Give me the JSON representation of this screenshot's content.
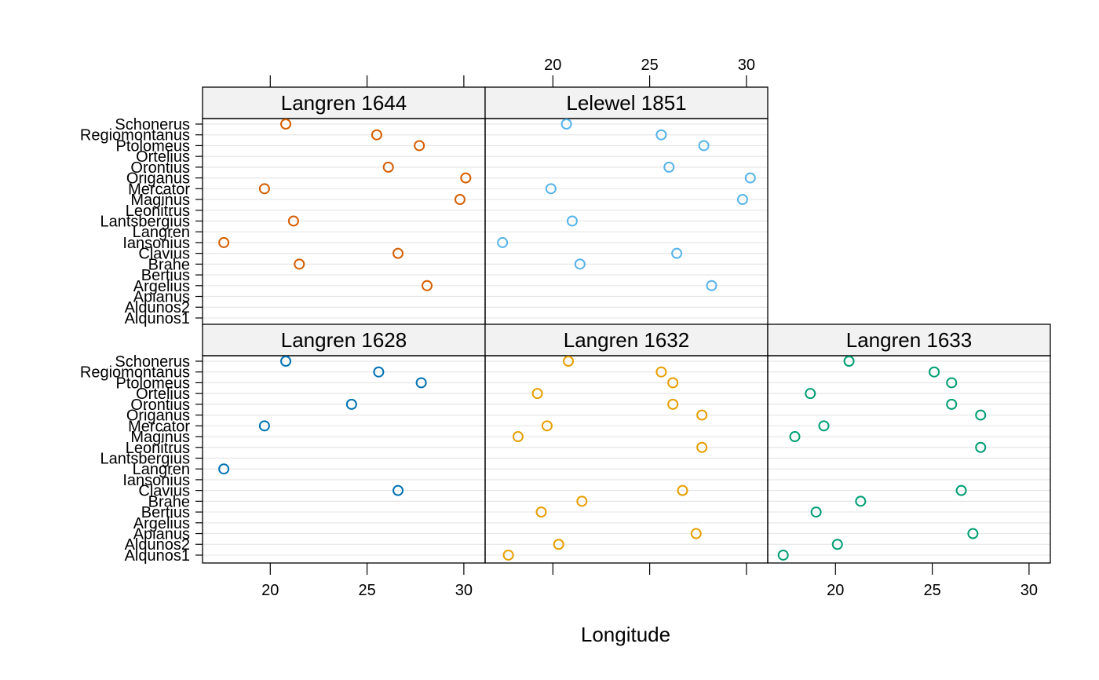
{
  "chart_data": {
    "type": "scatter",
    "layout": "trellis-dotplot",
    "xlabel": "Longitude",
    "x_ticks": [
      20,
      25,
      30
    ],
    "xlim": [
      16.5,
      31.1
    ],
    "categories": [
      "Schonerus",
      "Regiomontanus",
      "Ptolomeus",
      "Ortelius",
      "Orontius",
      "Origanus",
      "Mercator",
      "Maginus",
      "Leonitrus",
      "Lantsbergius",
      "Langren",
      "Iansonius",
      "Clavius",
      "Brahe",
      "Bertius",
      "Argelius",
      "Apianus",
      "Alqunos2",
      "Alqunos1"
    ],
    "panels": [
      {
        "name": "Langren 1644",
        "color": "#D55E00",
        "points": [
          {
            "category": "Schonerus",
            "x": 20.8
          },
          {
            "category": "Regiomontanus",
            "x": 25.5
          },
          {
            "category": "Ptolomeus",
            "x": 27.7
          },
          {
            "category": "Orontius",
            "x": 26.1
          },
          {
            "category": "Origanus",
            "x": 30.1
          },
          {
            "category": "Mercator",
            "x": 19.7
          },
          {
            "category": "Maginus",
            "x": 29.8
          },
          {
            "category": "Lantsbergius",
            "x": 21.2
          },
          {
            "category": "Iansonius",
            "x": 17.6
          },
          {
            "category": "Clavius",
            "x": 26.6
          },
          {
            "category": "Brahe",
            "x": 21.5
          },
          {
            "category": "Argelius",
            "x": 28.1
          }
        ]
      },
      {
        "name": "Lelewel 1851",
        "color": "#56B4E9",
        "points": [
          {
            "category": "Schonerus",
            "x": 20.7
          },
          {
            "category": "Regiomontanus",
            "x": 25.6
          },
          {
            "category": "Ptolomeus",
            "x": 27.8
          },
          {
            "category": "Orontius",
            "x": 26.0
          },
          {
            "category": "Origanus",
            "x": 30.2
          },
          {
            "category": "Mercator",
            "x": 19.9
          },
          {
            "category": "Maginus",
            "x": 29.8
          },
          {
            "category": "Lantsbergius",
            "x": 21.0
          },
          {
            "category": "Iansonius",
            "x": 17.4
          },
          {
            "category": "Clavius",
            "x": 26.4
          },
          {
            "category": "Brahe",
            "x": 21.4
          },
          {
            "category": "Argelius",
            "x": 28.2
          }
        ]
      },
      {
        "name": "Langren 1628",
        "color": "#0072B2",
        "points": [
          {
            "category": "Schonerus",
            "x": 20.8
          },
          {
            "category": "Regiomontanus",
            "x": 25.6
          },
          {
            "category": "Ptolomeus",
            "x": 27.8
          },
          {
            "category": "Orontius",
            "x": 24.2
          },
          {
            "category": "Mercator",
            "x": 19.7
          },
          {
            "category": "Langren",
            "x": 17.6
          },
          {
            "category": "Clavius",
            "x": 26.6
          }
        ]
      },
      {
        "name": "Langren 1632",
        "color": "#E69F00",
        "points": [
          {
            "category": "Schonerus",
            "x": 20.8
          },
          {
            "category": "Regiomontanus",
            "x": 25.6
          },
          {
            "category": "Ptolomeus",
            "x": 26.2
          },
          {
            "category": "Ortelius",
            "x": 19.2
          },
          {
            "category": "Orontius",
            "x": 26.2
          },
          {
            "category": "Origanus",
            "x": 27.7
          },
          {
            "category": "Mercator",
            "x": 19.7
          },
          {
            "category": "Maginus",
            "x": 18.2
          },
          {
            "category": "Leonitrus",
            "x": 27.7
          },
          {
            "category": "Clavius",
            "x": 26.7
          },
          {
            "category": "Brahe",
            "x": 21.5
          },
          {
            "category": "Bertius",
            "x": 19.4
          },
          {
            "category": "Apianus",
            "x": 27.4
          },
          {
            "category": "Alqunos2",
            "x": 20.3
          },
          {
            "category": "Alqunos1",
            "x": 17.7
          }
        ]
      },
      {
        "name": "Langren 1633",
        "color": "#009E73",
        "points": [
          {
            "category": "Schonerus",
            "x": 20.7
          },
          {
            "category": "Regiomontanus",
            "x": 25.1
          },
          {
            "category": "Ptolomeus",
            "x": 26.0
          },
          {
            "category": "Ortelius",
            "x": 18.7
          },
          {
            "category": "Orontius",
            "x": 26.0
          },
          {
            "category": "Origanus",
            "x": 27.5
          },
          {
            "category": "Mercator",
            "x": 19.4
          },
          {
            "category": "Maginus",
            "x": 17.9
          },
          {
            "category": "Leonitrus",
            "x": 27.5
          },
          {
            "category": "Clavius",
            "x": 26.5
          },
          {
            "category": "Brahe",
            "x": 21.3
          },
          {
            "category": "Bertius",
            "x": 19.0
          },
          {
            "category": "Apianus",
            "x": 27.1
          },
          {
            "category": "Alqunos2",
            "x": 20.1
          },
          {
            "category": "Alqunos1",
            "x": 17.3
          }
        ]
      }
    ]
  }
}
